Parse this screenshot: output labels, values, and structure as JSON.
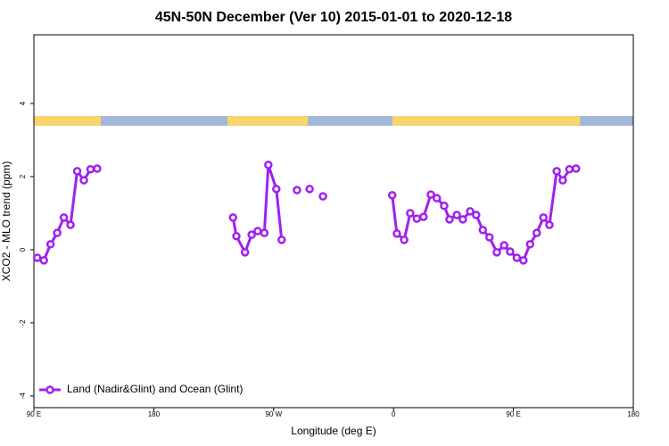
{
  "chart_data": {
    "type": "line",
    "title": "45N-50N December (Ver 10)   2015-01-01 to 2020-12-18",
    "x_label": "Longitude (deg E)",
    "y_label": "XCO2 - MLO trend (ppm)",
    "xlim": [
      90,
      540
    ],
    "xticks": [
      {
        "value": 90,
        "label": "90 E"
      },
      180,
      {
        "value": 270,
        "label": "90 W"
      },
      {
        "value": 360,
        "label": "0"
      },
      {
        "value": 450,
        "label": "90 E"
      },
      {
        "value": 540,
        "label": "180"
      }
    ],
    "ylim": [
      -4.32,
      5.88
    ],
    "yticks": [
      -4,
      -2,
      0,
      2,
      4
    ],
    "legend": "bottom-left",
    "series": [
      {
        "name": "Land (Nadir&Glint) and Ocean (Glint)",
        "color": "#a020f0",
        "x": [
          92.5,
          97.5,
          102.5,
          107.5,
          112.5,
          117.5,
          122.5,
          127.5,
          132.5,
          137.5,
          null,
          239.5,
          242,
          248.5,
          253.5,
          258,
          263,
          266,
          272,
          276,
          null,
          287.5,
          null,
          297,
          null,
          307,
          null,
          359,
          362.5,
          368,
          372.5,
          377.5,
          382.5,
          388,
          392.5,
          398,
          402,
          407.5,
          412,
          417.5,
          422,
          427,
          432,
          437.5,
          443,
          447.5,
          452.5,
          457.5,
          462.5,
          467.5,
          472.5,
          477,
          482.5,
          487,
          492,
          497
        ],
        "values": [
          -0.22,
          -0.29,
          0.15,
          0.46,
          0.88,
          0.68,
          2.15,
          1.9,
          2.2,
          2.22,
          null,
          0.88,
          0.37,
          -0.07,
          0.41,
          0.51,
          0.46,
          2.32,
          1.66,
          0.27,
          null,
          1.63,
          null,
          1.66,
          null,
          1.46,
          null,
          1.49,
          0.44,
          0.27,
          1.0,
          0.85,
          0.9,
          1.51,
          1.41,
          1.2,
          0.83,
          0.95,
          0.83,
          1.05,
          0.95,
          0.54,
          0.34,
          -0.07,
          0.12,
          -0.05,
          -0.22,
          -0.29,
          0.15,
          0.46,
          0.88,
          0.68,
          2.15,
          1.9,
          2.2,
          2.22
        ]
      }
    ]
  }
}
